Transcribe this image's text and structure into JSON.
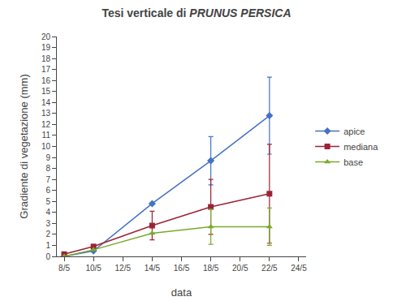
{
  "chart_data": {
    "type": "line",
    "title": [
      "Tesi verticale di ",
      "PRUNUS PERSICA"
    ],
    "xlabel": "data",
    "ylabel": "Gradiente di vegetazione (mm)",
    "x": [
      0,
      2,
      6,
      10,
      14
    ],
    "xlim": [
      -0.5,
      16.5
    ],
    "xticks": [
      {
        "value": 0,
        "label": "8/5"
      },
      {
        "value": 2,
        "label": "10/5"
      },
      {
        "value": 4,
        "label": "12/5"
      },
      {
        "value": 6,
        "label": "14/5"
      },
      {
        "value": 8,
        "label": "16/5"
      },
      {
        "value": 10,
        "label": "18/5"
      },
      {
        "value": 12,
        "label": "20/5"
      },
      {
        "value": 14,
        "label": "22/5"
      },
      {
        "value": 16,
        "label": "24/5"
      }
    ],
    "ylim": [
      0,
      20
    ],
    "yticks": [
      0,
      1,
      2,
      3,
      4,
      5,
      6,
      7,
      8,
      9,
      10,
      11,
      12,
      13,
      14,
      15,
      16,
      17,
      18,
      19,
      20
    ],
    "grid": false,
    "legend": "right",
    "series": [
      {
        "name": "apice",
        "values": [
          0.0,
          0.5,
          4.8,
          8.7,
          12.8
        ],
        "yerr": [
          0.0,
          0.0,
          0.0,
          2.2,
          3.5
        ],
        "color": "#4472c4",
        "marker": "diamond"
      },
      {
        "name": "mediana",
        "values": [
          0.2,
          0.9,
          2.8,
          4.5,
          5.7
        ],
        "yerr": [
          0.0,
          0.0,
          1.3,
          2.5,
          4.5
        ],
        "color": "#9b2335",
        "marker": "square"
      },
      {
        "name": "base",
        "values": [
          0.0,
          0.6,
          2.1,
          2.7,
          2.7
        ],
        "yerr": [
          0.0,
          0.0,
          0.0,
          1.6,
          1.7
        ],
        "color": "#7aaa2a",
        "marker": "triangle-up"
      }
    ]
  }
}
